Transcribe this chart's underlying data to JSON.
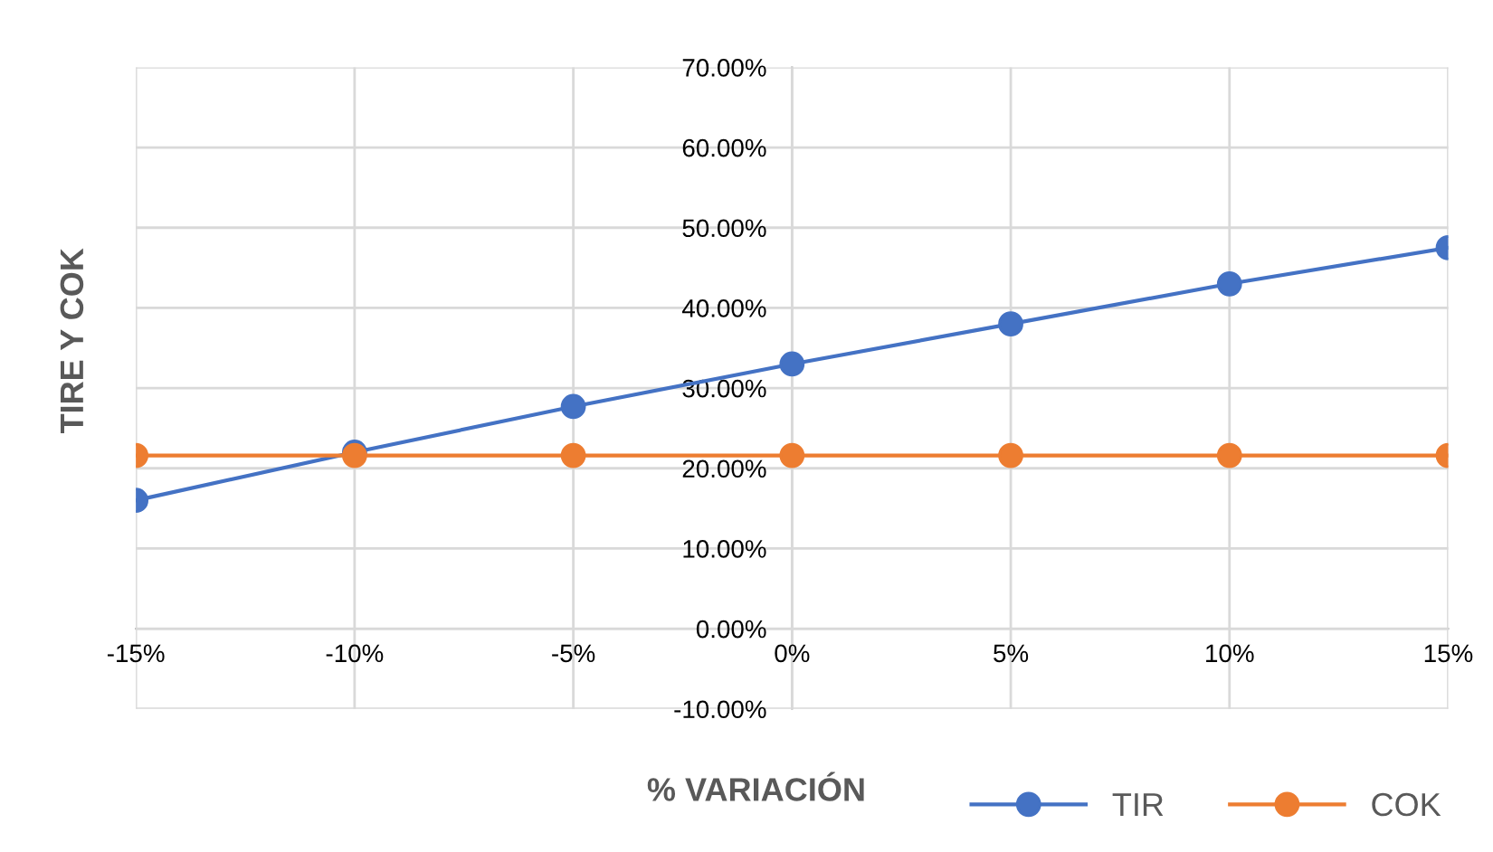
{
  "chart_data": {
    "type": "line",
    "xlabel": "% VARIACIÓN",
    "ylabel": "TIRE Y COK",
    "x": [
      -15,
      -10,
      -5,
      0,
      5,
      10,
      15
    ],
    "series": [
      {
        "name": "TIR",
        "color": "#4472c4",
        "values": [
          16,
          22,
          27.7,
          33,
          38,
          43,
          47.5
        ]
      },
      {
        "name": "COK",
        "color": "#ed7d31",
        "values": [
          21.6,
          21.6,
          21.6,
          21.6,
          21.6,
          21.6,
          21.6
        ]
      }
    ],
    "xlim": [
      -15,
      15
    ],
    "ylim": [
      -10,
      70
    ],
    "xticks": [
      {
        "value": -15,
        "label": "-15%"
      },
      {
        "value": -10,
        "label": "-10%"
      },
      {
        "value": -5,
        "label": "-5%"
      },
      {
        "value": 0,
        "label": "0%"
      },
      {
        "value": 5,
        "label": "5%"
      },
      {
        "value": 10,
        "label": "10%"
      },
      {
        "value": 15,
        "label": "15%"
      }
    ],
    "yticks": [
      {
        "value": -10,
        "label": "-10.00%"
      },
      {
        "value": 0,
        "label": "0.00%"
      },
      {
        "value": 10,
        "label": "10.00%"
      },
      {
        "value": 20,
        "label": "20.00%"
      },
      {
        "value": 30,
        "label": "30.00%"
      },
      {
        "value": 40,
        "label": "40.00%"
      },
      {
        "value": 50,
        "label": "50.00%"
      },
      {
        "value": 60,
        "label": "60.00%"
      },
      {
        "value": 70,
        "label": "70.00%"
      }
    ],
    "grid": true,
    "legend": "bottom right",
    "marker": "circle",
    "line_style": "solid"
  }
}
